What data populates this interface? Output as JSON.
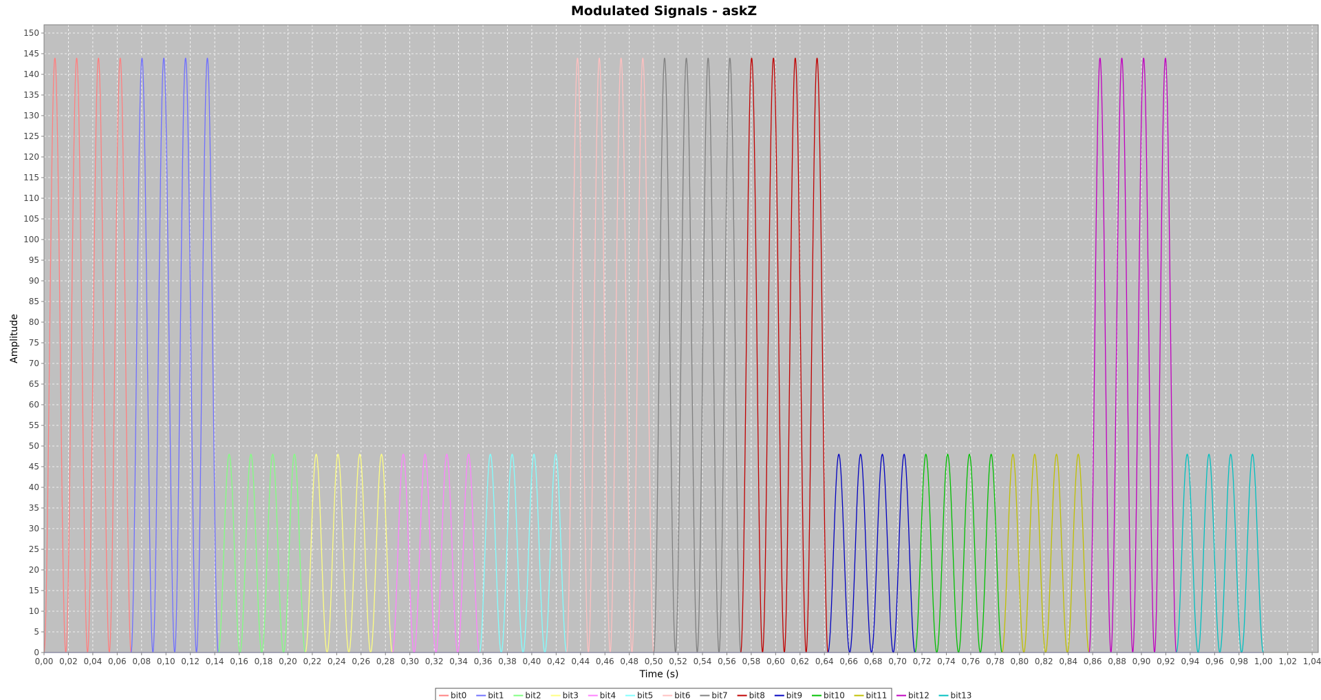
{
  "chart_data": {
    "type": "line",
    "title": "Modulated Signals - askZ",
    "xlabel": "Time (s)",
    "ylabel": "Amplitude",
    "xlim": [
      0,
      1.045
    ],
    "ylim": [
      0,
      152
    ],
    "x_ticks": [
      "0,00",
      "0,02",
      "0,04",
      "0,06",
      "0,08",
      "0,10",
      "0,12",
      "0,14",
      "0,16",
      "0,18",
      "0,20",
      "0,22",
      "0,24",
      "0,26",
      "0,28",
      "0,30",
      "0,32",
      "0,34",
      "0,36",
      "0,38",
      "0,40",
      "0,42",
      "0,44",
      "0,46",
      "0,48",
      "0,50",
      "0,52",
      "0,54",
      "0,56",
      "0,58",
      "0,60",
      "0,62",
      "0,64",
      "0,66",
      "0,68",
      "0,70",
      "0,72",
      "0,74",
      "0,76",
      "0,78",
      "0,80",
      "0,82",
      "0,84",
      "0,86",
      "0,88",
      "0,90",
      "0,92",
      "0,94",
      "0,96",
      "0,98",
      "1,00",
      "1,02",
      "1,04"
    ],
    "y_ticks": [
      "0",
      "5",
      "10",
      "15",
      "20",
      "25",
      "30",
      "35",
      "40",
      "45",
      "50",
      "55",
      "60",
      "65",
      "70",
      "75",
      "80",
      "85",
      "90",
      "95",
      "100",
      "105",
      "110",
      "115",
      "120",
      "125",
      "130",
      "135",
      "140",
      "145",
      "150"
    ],
    "grid": true,
    "legend_position": "bottom",
    "carrier_cycles_per_bit": 4,
    "series": [
      {
        "name": "bit0",
        "color": "#ff8080",
        "t_start": 0.0,
        "t_end": 0.0714,
        "peak": 144
      },
      {
        "name": "bit1",
        "color": "#7070ff",
        "t_start": 0.0714,
        "t_end": 0.1429,
        "peak": 144
      },
      {
        "name": "bit2",
        "color": "#80ff80",
        "t_start": 0.1429,
        "t_end": 0.2143,
        "peak": 48
      },
      {
        "name": "bit3",
        "color": "#ffff80",
        "t_start": 0.2143,
        "t_end": 0.2857,
        "peak": 48
      },
      {
        "name": "bit4",
        "color": "#ff80ff",
        "t_start": 0.2857,
        "t_end": 0.3571,
        "peak": 48
      },
      {
        "name": "bit5",
        "color": "#80ffff",
        "t_start": 0.3571,
        "t_end": 0.4286,
        "peak": 48
      },
      {
        "name": "bit6",
        "color": "#ffc0c0",
        "t_start": 0.4286,
        "t_end": 0.5,
        "peak": 144
      },
      {
        "name": "bit7",
        "color": "#808080",
        "t_start": 0.5,
        "t_end": 0.5714,
        "peak": 144
      },
      {
        "name": "bit8",
        "color": "#c00000",
        "t_start": 0.5714,
        "t_end": 0.6429,
        "peak": 144
      },
      {
        "name": "bit9",
        "color": "#0000c0",
        "t_start": 0.6429,
        "t_end": 0.7143,
        "peak": 48
      },
      {
        "name": "bit10",
        "color": "#00c000",
        "t_start": 0.7143,
        "t_end": 0.7857,
        "peak": 48
      },
      {
        "name": "bit11",
        "color": "#c0c000",
        "t_start": 0.7857,
        "t_end": 0.8571,
        "peak": 48
      },
      {
        "name": "bit12",
        "color": "#c000c0",
        "t_start": 0.8571,
        "t_end": 0.9286,
        "peak": 144
      },
      {
        "name": "bit13",
        "color": "#00c0c0",
        "t_start": 0.9286,
        "t_end": 1.0,
        "peak": 48
      }
    ]
  }
}
